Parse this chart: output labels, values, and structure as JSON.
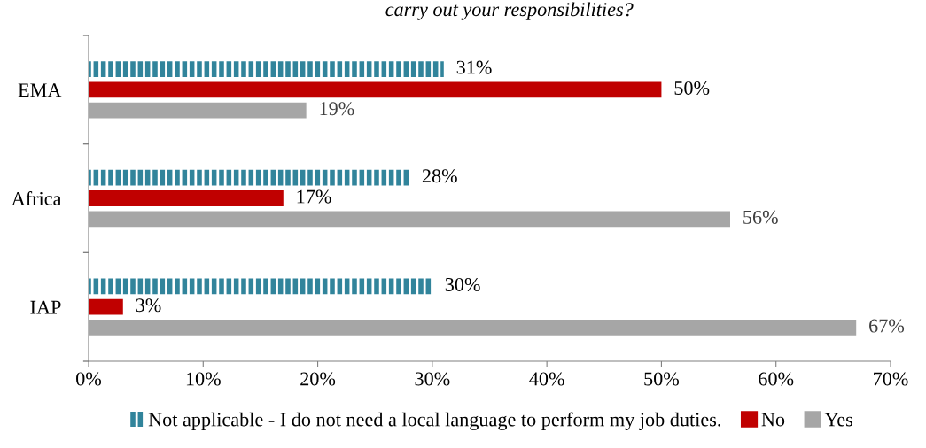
{
  "chart_data": {
    "type": "bar",
    "orientation": "horizontal",
    "title": "carry out your responsibilities?",
    "categories": [
      "EMA",
      "Africa",
      "IAP"
    ],
    "series": [
      {
        "name": "Not applicable - I do not need a local language to perform my job duties.",
        "color": "#31849b",
        "values": [
          31,
          28,
          30
        ],
        "value_labels": [
          "31%",
          "28%",
          "30%"
        ]
      },
      {
        "name": "No",
        "color": "#c00000",
        "values": [
          50,
          17,
          3
        ],
        "value_labels": [
          "50%",
          "17%",
          "3%"
        ]
      },
      {
        "name": "Yes",
        "color": "#a6a6a6",
        "values": [
          19,
          56,
          67
        ],
        "value_labels": [
          "19%",
          "56%",
          "67%"
        ]
      }
    ],
    "xlim": [
      0,
      70
    ],
    "xticks": [
      {
        "value": 0,
        "label": "0%"
      },
      {
        "value": 10,
        "label": "10%"
      },
      {
        "value": 20,
        "label": "20%"
      },
      {
        "value": 30,
        "label": "30%"
      },
      {
        "value": 40,
        "label": "40%"
      },
      {
        "value": 50,
        "label": "50%"
      },
      {
        "value": 60,
        "label": "60%"
      },
      {
        "value": 70,
        "label": "70%"
      }
    ],
    "grid": false,
    "legend": "bottom"
  }
}
